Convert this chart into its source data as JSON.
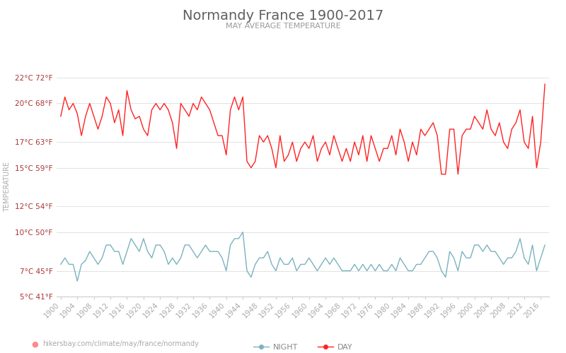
{
  "title": "Normandy France 1900-2017",
  "subtitle": "MAY AVERAGE TEMPERATURE",
  "ylabel": "TEMPERATURE",
  "xlabel_url": "hikersbay.com/climate/may/france/normandy",
  "title_color": "#606060",
  "subtitle_color": "#999999",
  "ylabel_color": "#aaaaaa",
  "background_color": "#ffffff",
  "grid_color": "#dddddd",
  "day_color": "#ff2222",
  "night_color": "#7ab3be",
  "years": [
    1900,
    1901,
    1902,
    1903,
    1904,
    1905,
    1906,
    1907,
    1908,
    1909,
    1910,
    1911,
    1912,
    1913,
    1914,
    1915,
    1916,
    1917,
    1918,
    1919,
    1920,
    1921,
    1922,
    1923,
    1924,
    1925,
    1926,
    1927,
    1928,
    1929,
    1930,
    1931,
    1932,
    1933,
    1934,
    1935,
    1936,
    1937,
    1938,
    1939,
    1940,
    1941,
    1942,
    1943,
    1944,
    1945,
    1946,
    1947,
    1948,
    1949,
    1950,
    1951,
    1952,
    1953,
    1954,
    1955,
    1956,
    1957,
    1958,
    1959,
    1960,
    1961,
    1962,
    1963,
    1964,
    1965,
    1966,
    1967,
    1968,
    1969,
    1970,
    1971,
    1972,
    1973,
    1974,
    1975,
    1976,
    1977,
    1978,
    1979,
    1980,
    1981,
    1982,
    1983,
    1984,
    1985,
    1986,
    1987,
    1988,
    1989,
    1990,
    1991,
    1992,
    1993,
    1994,
    1995,
    1996,
    1997,
    1998,
    1999,
    2000,
    2001,
    2002,
    2003,
    2004,
    2005,
    2006,
    2007,
    2008,
    2009,
    2010,
    2011,
    2012,
    2013,
    2014,
    2015,
    2016,
    2017
  ],
  "day_temps": [
    19.0,
    20.5,
    19.5,
    20.0,
    19.2,
    17.5,
    19.0,
    20.0,
    19.0,
    18.0,
    19.0,
    20.5,
    20.0,
    18.5,
    19.5,
    17.5,
    21.0,
    19.5,
    18.8,
    19.0,
    18.0,
    17.5,
    19.5,
    20.0,
    19.5,
    20.0,
    19.5,
    18.5,
    16.5,
    20.0,
    19.5,
    19.0,
    20.0,
    19.5,
    20.5,
    20.0,
    19.5,
    18.5,
    17.5,
    17.5,
    16.0,
    19.5,
    20.5,
    19.5,
    20.5,
    15.5,
    15.0,
    15.5,
    17.5,
    17.0,
    17.5,
    16.5,
    15.0,
    17.5,
    15.5,
    16.0,
    17.0,
    15.5,
    16.5,
    17.0,
    16.5,
    17.5,
    15.5,
    16.5,
    17.0,
    16.0,
    17.5,
    16.5,
    15.5,
    16.5,
    15.5,
    17.0,
    16.0,
    17.5,
    15.5,
    17.5,
    16.5,
    15.5,
    16.5,
    16.5,
    17.5,
    16.0,
    18.0,
    17.0,
    15.5,
    17.0,
    16.0,
    18.0,
    17.5,
    18.0,
    18.5,
    17.5,
    14.5,
    14.5,
    18.0,
    18.0,
    14.5,
    17.5,
    18.0,
    18.0,
    19.0,
    18.5,
    18.0,
    19.5,
    18.0,
    17.5,
    18.5,
    17.0,
    16.5,
    18.0,
    18.5,
    19.5,
    17.0,
    16.5,
    19.0,
    15.0,
    17.0,
    21.5
  ],
  "night_temps": [
    7.5,
    8.0,
    7.5,
    7.5,
    6.2,
    7.5,
    7.8,
    8.5,
    8.0,
    7.5,
    8.0,
    9.0,
    9.0,
    8.5,
    8.5,
    7.5,
    8.5,
    9.5,
    9.0,
    8.5,
    9.5,
    8.5,
    8.0,
    9.0,
    9.0,
    8.5,
    7.5,
    8.0,
    7.5,
    8.0,
    9.0,
    9.0,
    8.5,
    8.0,
    8.5,
    9.0,
    8.5,
    8.5,
    8.5,
    8.0,
    7.0,
    9.0,
    9.5,
    9.5,
    10.0,
    7.0,
    6.5,
    7.5,
    8.0,
    8.0,
    8.5,
    7.5,
    7.0,
    8.0,
    7.5,
    7.5,
    8.0,
    7.0,
    7.5,
    7.5,
    8.0,
    7.5,
    7.0,
    7.5,
    8.0,
    7.5,
    8.0,
    7.5,
    7.0,
    7.0,
    7.0,
    7.5,
    7.0,
    7.5,
    7.0,
    7.5,
    7.0,
    7.5,
    7.0,
    7.0,
    7.5,
    7.0,
    8.0,
    7.5,
    7.0,
    7.0,
    7.5,
    7.5,
    8.0,
    8.5,
    8.5,
    8.0,
    7.0,
    6.5,
    8.5,
    8.0,
    7.0,
    8.5,
    8.0,
    8.0,
    9.0,
    9.0,
    8.5,
    9.0,
    8.5,
    8.5,
    8.0,
    7.5,
    8.0,
    8.0,
    8.5,
    9.5,
    8.0,
    7.5,
    9.0,
    7.0,
    8.0,
    9.0
  ],
  "yticks_c": [
    5,
    7,
    10,
    12,
    15,
    17,
    20,
    22
  ],
  "yticks_f": [
    41,
    45,
    50,
    54,
    59,
    63,
    68,
    72
  ],
  "xticks": [
    1900,
    1904,
    1908,
    1912,
    1916,
    1920,
    1924,
    1928,
    1932,
    1936,
    1940,
    1944,
    1948,
    1952,
    1956,
    1960,
    1964,
    1968,
    1972,
    1976,
    1980,
    1984,
    1988,
    1992,
    1996,
    2000,
    2004,
    2008,
    2012,
    2016
  ],
  "ymin": 5,
  "ymax": 22,
  "legend_night": "NIGHT",
  "legend_day": "DAY",
  "title_fontsize": 14,
  "subtitle_fontsize": 8,
  "tick_fontsize": 7.5,
  "ylabel_fontsize": 7,
  "legend_fontsize": 8,
  "url_fontsize": 7
}
